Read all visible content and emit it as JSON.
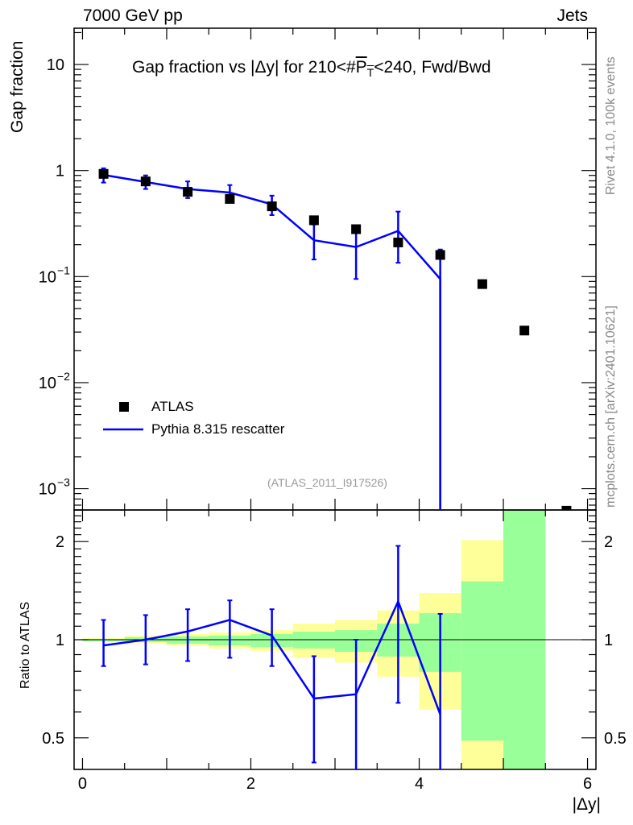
{
  "header_left": "7000 GeV pp",
  "header_right": "Jets",
  "side_label_top": "Rivet 4.1.0,  100k events",
  "side_label_bottom": "mcplots.cern.ch [arXiv:2401.10621]",
  "analysis_tag": "(ATLAS_2011_I917526)",
  "chart_data": [
    {
      "type": "scatter",
      "title": "Gap fraction vs |Δy| for 210<#P̅T<240, Fwd/Bwd",
      "title_parts": {
        "prefix": "Gap fraction vs |Δy| for 210<#",
        "p": "P",
        "sub": "T",
        "suffix": "<240, Fwd/Bwd"
      },
      "ylabel": "Gap fraction",
      "yscale": "log",
      "ylim": [
        0.00063,
        22
      ],
      "xlim": [
        -0.1,
        6.1
      ],
      "ytick_labels": [
        {
          "v": 10,
          "base": "10",
          "exp": ""
        },
        {
          "v": 1,
          "base": "1",
          "exp": ""
        },
        {
          "v": 0.1,
          "base": "10",
          "exp": "−1"
        },
        {
          "v": 0.01,
          "base": "10",
          "exp": "−2"
        },
        {
          "v": 0.001,
          "base": "10",
          "exp": "−3"
        }
      ],
      "legend": {
        "placement": "bottom-left",
        "entries": [
          "ATLAS",
          "Pythia 8.315 rescatter"
        ]
      },
      "series": [
        {
          "name": "ATLAS",
          "color": "#000000",
          "x": [
            0.25,
            0.75,
            1.25,
            1.75,
            2.25,
            2.75,
            3.25,
            3.75,
            4.25,
            4.75,
            5.25,
            5.75
          ],
          "y": [
            0.93,
            0.79,
            0.63,
            0.54,
            0.46,
            0.34,
            0.28,
            0.21,
            0.16,
            0.085,
            0.031,
            0.00062
          ]
        },
        {
          "name": "Pythia 8.315 rescatter",
          "color": "#0000ff",
          "x": [
            0.25,
            0.75,
            1.25,
            1.75,
            2.25,
            2.75,
            3.25,
            3.75,
            4.25
          ],
          "y": [
            0.91,
            0.78,
            0.67,
            0.62,
            0.48,
            0.22,
            0.19,
            0.27,
            0.095
          ],
          "err_low": [
            0.77,
            0.67,
            0.55,
            0.51,
            0.38,
            0.145,
            0.095,
            0.135,
            0.0
          ],
          "err_high": [
            1.05,
            0.9,
            0.79,
            0.73,
            0.58,
            0.31,
            0.29,
            0.41,
            0.18
          ]
        }
      ]
    },
    {
      "type": "line",
      "ylabel": "Ratio to ATLAS",
      "xlabel": "|Δy|",
      "yscale": "log",
      "ylim": [
        0.4,
        2.5
      ],
      "xlim": [
        -0.1,
        6.1
      ],
      "xticks": [
        0,
        2,
        4,
        6
      ],
      "yticks": [
        0.5,
        1,
        2
      ],
      "bands": {
        "edges": [
          0,
          0.5,
          1,
          1.5,
          2,
          2.5,
          3,
          3.5,
          4,
          4.5,
          5,
          5.5
        ],
        "yellow_color": "#ffff99",
        "green_color": "#99ff99",
        "yellow_low": [
          0.983,
          0.972,
          0.956,
          0.94,
          0.924,
          0.88,
          0.85,
          0.77,
          0.61,
          0.3,
          0.3
        ],
        "yellow_high": [
          1.011,
          1.029,
          1.041,
          1.052,
          1.07,
          1.12,
          1.15,
          1.23,
          1.39,
          2.02,
          3
        ],
        "green_low": [
          0.989,
          0.983,
          0.972,
          0.961,
          0.95,
          0.94,
          0.918,
          0.888,
          0.797,
          0.49,
          0.3
        ],
        "green_high": [
          1.006,
          1.017,
          1.023,
          1.029,
          1.041,
          1.058,
          1.07,
          1.12,
          1.206,
          1.51,
          3
        ]
      },
      "series": [
        {
          "name": "Pythia 8.315 rescatter",
          "color": "#0000ff",
          "x": [
            0.25,
            0.75,
            1.25,
            1.75,
            2.25,
            2.75,
            3.25,
            3.75,
            4.25
          ],
          "y": [
            0.96,
            1.0,
            1.06,
            1.15,
            1.03,
            0.66,
            0.68,
            1.31,
            0.59
          ],
          "err_low": [
            0.83,
            0.84,
            0.86,
            0.88,
            0.83,
            0.42,
            0.3,
            0.64,
            0.3
          ],
          "err_high": [
            1.15,
            1.19,
            1.24,
            1.32,
            1.24,
            0.89,
            1.0,
            1.94,
            1.2
          ]
        }
      ]
    }
  ]
}
